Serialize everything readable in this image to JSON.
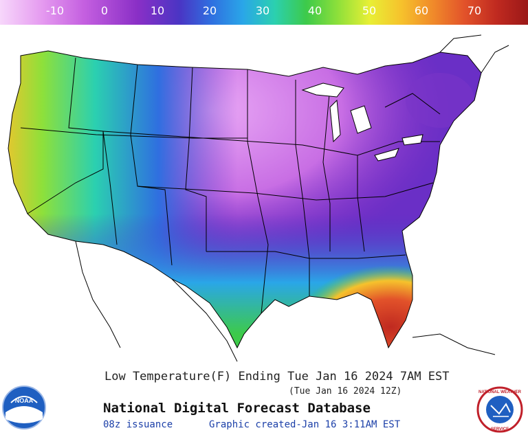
{
  "colorbar": {
    "ticks": [
      "-10",
      "0",
      "10",
      "20",
      "30",
      "40",
      "50",
      "60",
      "70"
    ],
    "colors": [
      "#f7d7fb",
      "#e59af0",
      "#c45fe0",
      "#8a2fc6",
      "#4a35c4",
      "#2f6fe0",
      "#2aa6e8",
      "#2bd0b0",
      "#3dca4a",
      "#8ee03a",
      "#e8ef35",
      "#f6c22c",
      "#f08a2a",
      "#e2522a",
      "#c02a20",
      "#9b1818"
    ]
  },
  "map": {
    "region": "contiguous United States",
    "variable": "low temperature",
    "warmest_region": "south Florida",
    "coldest_region": "northern plains / Montana"
  },
  "caption": {
    "line1": "Low Temperature(F) Ending Tue Jan 16 2024   7AM EST",
    "line2": "(Tue Jan 16 2024 12Z)"
  },
  "footer": {
    "title": "National Digital Forecast Database",
    "issuance": "08z issuance",
    "created": "Graphic created-Jan 16  3:11AM EST"
  },
  "logos": {
    "noaa_text": "NOAA",
    "nws_text": "NATIONAL WEATHER SERVICE"
  }
}
